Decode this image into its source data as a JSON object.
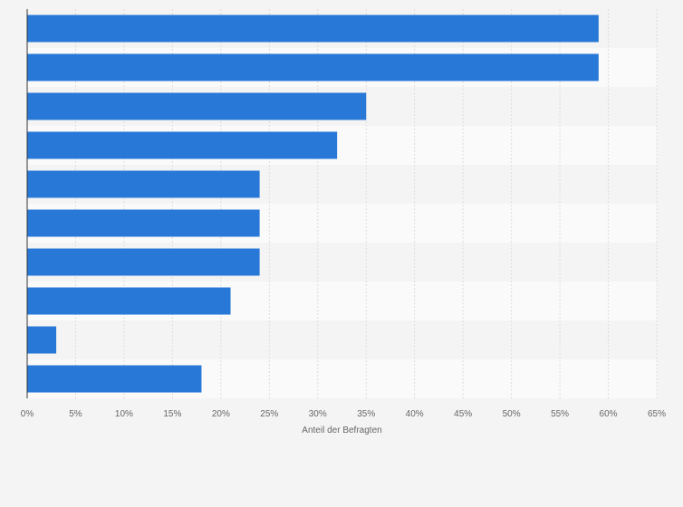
{
  "chart_data": {
    "type": "bar",
    "orientation": "horizontal",
    "categories": [
      "",
      "",
      "",
      "",
      "",
      "",
      "",
      "",
      "",
      ""
    ],
    "values": [
      59,
      59,
      35,
      32,
      24,
      24,
      24,
      21,
      3,
      18
    ],
    "xlabel": "Anteil der Befragten",
    "ylabel": "",
    "xlim": [
      0,
      65
    ],
    "xticks": [
      0,
      5,
      10,
      15,
      20,
      25,
      30,
      35,
      40,
      45,
      50,
      55,
      60,
      65
    ],
    "tick_suffix": "%",
    "grid": true,
    "bar_color": "#2878d8",
    "band_colors": [
      "#f4f4f4",
      "#fafafa"
    ]
  }
}
